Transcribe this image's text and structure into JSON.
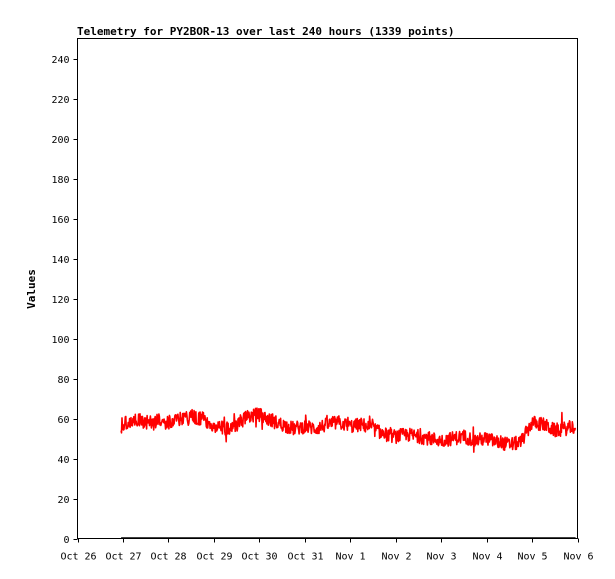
{
  "chart_data": {
    "type": "line",
    "title": "Telemetry for PY2BOR-13 over last 240 hours (1339 points)",
    "xlabel": "",
    "ylabel": "Values",
    "ylim": [
      0,
      250
    ],
    "yticks": [
      0,
      20,
      40,
      60,
      80,
      100,
      120,
      140,
      160,
      180,
      200,
      220,
      240
    ],
    "xlim": [
      "Oct 26",
      "Nov 6"
    ],
    "xticks": [
      "Oct 26",
      "Oct 27",
      "Oct 28",
      "Oct 29",
      "Oct 30",
      "Oct 31",
      "Nov 1",
      "Nov 2",
      "Nov 3",
      "Nov 4",
      "Nov 5",
      "Nov 6"
    ],
    "grid": false,
    "legend": "none",
    "series": [
      {
        "color": "#ff0000",
        "x": [
          "Oct 26 23:00",
          "Oct 27 06:00",
          "Oct 27 12:00",
          "Oct 27 18:00",
          "Oct 28 00:00",
          "Oct 28 06:00",
          "Oct 28 12:00",
          "Oct 28 18:00",
          "Oct 29 00:00",
          "Oct 29 06:00",
          "Oct 29 12:00",
          "Oct 29 18:00",
          "Oct 30 00:00",
          "Oct 30 06:00",
          "Oct 30 12:00",
          "Oct 30 18:00",
          "Oct 31 00:00",
          "Oct 31 06:00",
          "Oct 31 12:00",
          "Oct 31 18:00",
          "Nov 1 00:00",
          "Nov 1 06:00",
          "Nov 1 12:00",
          "Nov 1 18:00",
          "Nov 2 00:00",
          "Nov 2 06:00",
          "Nov 2 12:00",
          "Nov 2 18:00",
          "Nov 3 00:00",
          "Nov 3 06:00",
          "Nov 3 12:00",
          "Nov 3 18:00",
          "Nov 4 00:00",
          "Nov 4 06:00",
          "Nov 4 12:00",
          "Nov 4 18:00",
          "Nov 5 00:00",
          "Nov 5 06:00",
          "Nov 5 12:00",
          "Nov 5 18:00",
          "Nov 5 23:00"
        ],
        "y": [
          57,
          60,
          58,
          59,
          58,
          60,
          61,
          60,
          56,
          55,
          57,
          61,
          62,
          59,
          57,
          55,
          56,
          55,
          57,
          58,
          56,
          57,
          55,
          52,
          51,
          52,
          51,
          50,
          49,
          50,
          51,
          49,
          50,
          48,
          47,
          48,
          58,
          57,
          54,
          55,
          56
        ]
      }
    ]
  }
}
